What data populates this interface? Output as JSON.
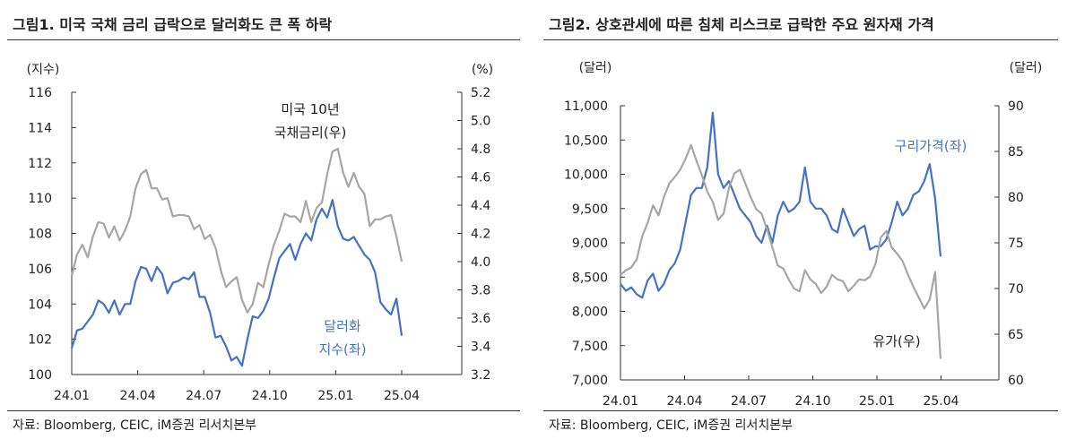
{
  "chart_data": [
    {
      "type": "line",
      "title": "그림1.  미국 국채 금리 급락으로 달러화도 큰 폭 하락",
      "source": "자료: Bloomberg, CEIC, iM증권 리서치본부",
      "left_axis": {
        "unit": "(지수)",
        "ylim": [
          100,
          116
        ],
        "ticks": [
          "116",
          "114",
          "112",
          "110",
          "108",
          "106",
          "104",
          "102",
          "100"
        ]
      },
      "right_axis": {
        "unit": "(%)",
        "ylim": [
          3.2,
          5.2
        ],
        "ticks": [
          "5.2",
          "5.0",
          "4.8",
          "4.6",
          "4.4",
          "4.2",
          "4.0",
          "3.8",
          "3.6",
          "3.4",
          "3.2"
        ]
      },
      "x_ticks": [
        "24.01",
        "24.04",
        "24.07",
        "24.10",
        "25.01",
        "25.04"
      ],
      "annotations": [
        {
          "lines": [
            "미국 10년",
            "국채금리(우)"
          ],
          "color": "#222222"
        },
        {
          "lines": [
            "달러화",
            "지수(좌)"
          ],
          "color": "#4472C4"
        }
      ],
      "series": [
        {
          "name": "달러화 지수(좌)",
          "axis": "left",
          "color": "#4472C4",
          "values": [
            101.5,
            102.5,
            102.6,
            103.0,
            103.4,
            104.2,
            104.0,
            103.5,
            104.2,
            103.4,
            104.0,
            104.0,
            105.3,
            106.1,
            106.0,
            105.3,
            106.1,
            105.7,
            104.6,
            105.2,
            105.3,
            105.5,
            105.4,
            105.8,
            104.4,
            104.4,
            103.5,
            102.1,
            102.2,
            101.6,
            100.8,
            101.0,
            100.5,
            102.0,
            103.3,
            103.2,
            103.6,
            104.3,
            105.5,
            106.6,
            107.0,
            107.4,
            106.5,
            107.4,
            108.0,
            107.6,
            108.8,
            109.4,
            108.9,
            109.9,
            108.4,
            107.7,
            107.6,
            107.8,
            107.3,
            106.8,
            106.5,
            105.8,
            104.1,
            103.7,
            103.4,
            104.3,
            102.2
          ]
        },
        {
          "name": "미국 10년 국채금리(우)",
          "axis": "right",
          "color": "#A6A6A6",
          "values": [
            3.9,
            4.05,
            4.12,
            4.03,
            4.18,
            4.28,
            4.27,
            4.17,
            4.25,
            4.15,
            4.22,
            4.32,
            4.52,
            4.62,
            4.65,
            4.52,
            4.52,
            4.44,
            4.45,
            4.32,
            4.33,
            4.33,
            4.32,
            4.23,
            4.26,
            4.16,
            4.19,
            4.1,
            3.94,
            3.82,
            3.86,
            3.89,
            3.73,
            3.64,
            3.7,
            3.85,
            3.82,
            3.98,
            4.12,
            4.22,
            4.34,
            4.32,
            4.32,
            4.28,
            4.43,
            4.28,
            4.38,
            4.42,
            4.62,
            4.78,
            4.8,
            4.63,
            4.53,
            4.63,
            4.53,
            4.48,
            4.25,
            4.3,
            4.3,
            4.32,
            4.33,
            4.18,
            4.0
          ]
        }
      ]
    },
    {
      "type": "line",
      "title": "그림2.  상호관세에 따른 침체 리스크로 급락한 주요 원자재 가격",
      "source": "자료: Bloomberg, CEIC, iM증권 리서치본부",
      "left_axis": {
        "unit": "(달러)",
        "ylim": [
          7000,
          11000
        ],
        "ticks": [
          "11,000",
          "10,500",
          "10,000",
          "9,500",
          "9,000",
          "8,500",
          "8,000",
          "7,500",
          "7,000"
        ]
      },
      "right_axis": {
        "unit": "(달러)",
        "ylim": [
          60,
          90
        ],
        "ticks": [
          "90",
          "85",
          "80",
          "75",
          "70",
          "65",
          "60"
        ]
      },
      "x_ticks": [
        "24.01",
        "24.04",
        "24.07",
        "24.10",
        "25.01",
        "25.04"
      ],
      "annotations": [
        {
          "lines": [
            "구리가격(좌)"
          ],
          "color": "#4472C4"
        },
        {
          "lines": [
            "유가(우)"
          ],
          "color": "#222222"
        }
      ],
      "series": [
        {
          "name": "구리가격(좌)",
          "axis": "left",
          "color": "#4472C4",
          "values": [
            8400,
            8300,
            8350,
            8250,
            8200,
            8450,
            8550,
            8300,
            8400,
            8600,
            8700,
            8900,
            9300,
            9700,
            9800,
            9800,
            10100,
            10900,
            10000,
            9800,
            9900,
            9700,
            9500,
            9400,
            9300,
            9100,
            9000,
            9250,
            9000,
            9400,
            9600,
            9450,
            9500,
            9600,
            10100,
            9600,
            9500,
            9500,
            9400,
            9200,
            9150,
            9500,
            9300,
            9100,
            9200,
            9250,
            8900,
            8950,
            8950,
            9050,
            9300,
            9600,
            9400,
            9500,
            9700,
            9750,
            9900,
            10150,
            9650,
            8800
          ]
        },
        {
          "name": "유가(우)",
          "axis": "right",
          "color": "#A6A6A6",
          "values": [
            71.5,
            72.0,
            72.3,
            73.2,
            75.7,
            77.2,
            79.1,
            78.0,
            80.0,
            81.5,
            82.2,
            83.0,
            84.2,
            85.7,
            84.0,
            82.4,
            80.6,
            79.5,
            77.5,
            78.2,
            81.0,
            82.6,
            83.0,
            81.5,
            80.0,
            78.7,
            78.2,
            76.5,
            74.5,
            72.5,
            72.2,
            71.0,
            70.0,
            69.7,
            72.0,
            71.0,
            70.5,
            69.5,
            70.2,
            71.5,
            71.0,
            70.8,
            69.7,
            70.3,
            71.0,
            70.9,
            71.3,
            72.7,
            75.6,
            76.3,
            74.5,
            73.8,
            73.0,
            71.5,
            70.2,
            69.0,
            67.8,
            68.8,
            71.8,
            62.3
          ]
        }
      ]
    }
  ]
}
